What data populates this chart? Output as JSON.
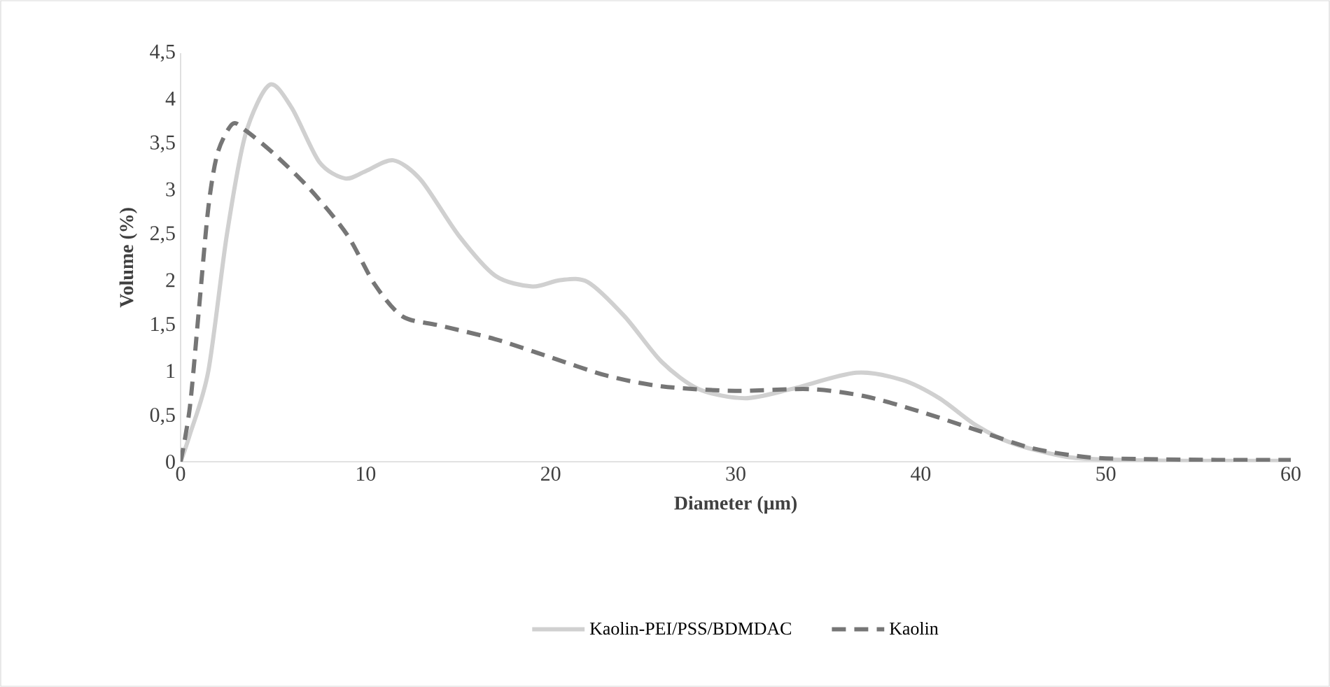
{
  "chart_data": {
    "type": "line",
    "xlabel": "Diameter (µm)",
    "ylabel": "Volume (%)",
    "xlim": [
      0,
      60
    ],
    "xticks": [
      0,
      10,
      20,
      30,
      40,
      50,
      60
    ],
    "ylim": [
      0,
      4.5
    ],
    "yticks": [
      0,
      {
        "value": 0.5,
        "label": "0,5"
      },
      1,
      {
        "value": 1.5,
        "label": "1,5"
      },
      2,
      {
        "value": 2.5,
        "label": "2,5"
      },
      3,
      {
        "value": 3.5,
        "label": "3,5"
      },
      4,
      {
        "value": 4.5,
        "label": "4,5"
      }
    ],
    "legend": "bottom",
    "series": [
      {
        "name": "Kaolin-PEI/PSS/BDMDAC",
        "color": "#d0d0d0",
        "line_style": "solid",
        "x": [
          0,
          0.5,
          1.5,
          2.5,
          3.5,
          4.8,
          6,
          7.5,
          8.9,
          10,
          11.5,
          13,
          15,
          17,
          19,
          20.5,
          22,
          24,
          26,
          28,
          30.5,
          33,
          36.5,
          39,
          41,
          43,
          45,
          48,
          51,
          55,
          60
        ],
        "values": [
          0,
          0.3,
          1.0,
          2.5,
          3.6,
          4.15,
          3.9,
          3.3,
          3.12,
          3.2,
          3.32,
          3.1,
          2.5,
          2.05,
          1.93,
          2.0,
          1.98,
          1.6,
          1.1,
          0.8,
          0.7,
          0.8,
          0.98,
          0.9,
          0.7,
          0.4,
          0.2,
          0.05,
          0.02,
          0.01,
          0.01
        ]
      },
      {
        "name": "Kaolin",
        "color": "#767676",
        "line_style": "dashed",
        "x": [
          0,
          0.5,
          1,
          1.5,
          2,
          2.8,
          3.5,
          5,
          7,
          9,
          10.5,
          12,
          14,
          17,
          20,
          23,
          26,
          30,
          34,
          37,
          40,
          43,
          46,
          49,
          52,
          56,
          60
        ],
        "values": [
          0,
          0.6,
          1.7,
          2.8,
          3.4,
          3.72,
          3.65,
          3.4,
          3.0,
          2.5,
          1.95,
          1.6,
          1.5,
          1.35,
          1.15,
          0.95,
          0.83,
          0.78,
          0.8,
          0.72,
          0.55,
          0.35,
          0.15,
          0.05,
          0.03,
          0.02,
          0.02
        ]
      }
    ]
  }
}
